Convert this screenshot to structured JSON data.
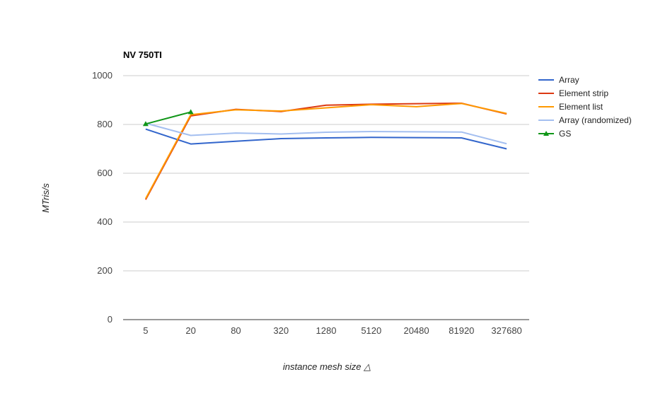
{
  "chart_data": {
    "type": "line",
    "title": "NV 750TI",
    "xlabel": "instance mesh size △",
    "ylabel": "MTris/s",
    "categories": [
      "5",
      "20",
      "80",
      "320",
      "1280",
      "5120",
      "20480",
      "81920",
      "327680"
    ],
    "ylim": [
      0,
      1000
    ],
    "yticks": [
      0,
      200,
      400,
      600,
      800,
      1000
    ],
    "grid": true,
    "legend_position": "right",
    "series": [
      {
        "name": "Array",
        "color": "#3366cc",
        "marker": "none",
        "values": [
          781,
          720,
          731,
          742,
          745,
          747,
          746,
          745,
          700
        ]
      },
      {
        "name": "Element strip",
        "color": "#dc3912",
        "marker": "none",
        "values": [
          492,
          835,
          862,
          853,
          879,
          883,
          885,
          887,
          843
        ]
      },
      {
        "name": "Element list",
        "color": "#ff9900",
        "marker": "none",
        "values": [
          496,
          840,
          860,
          855,
          868,
          881,
          873,
          886,
          845
        ]
      },
      {
        "name": "Array (randomized)",
        "color": "#a4bff0",
        "marker": "none",
        "values": [
          805,
          755,
          765,
          761,
          768,
          771,
          770,
          769,
          721
        ]
      },
      {
        "name": "GS",
        "color": "#109618",
        "marker": "triangle",
        "values": [
          802,
          851,
          null,
          null,
          null,
          null,
          null,
          null,
          null
        ]
      }
    ]
  }
}
